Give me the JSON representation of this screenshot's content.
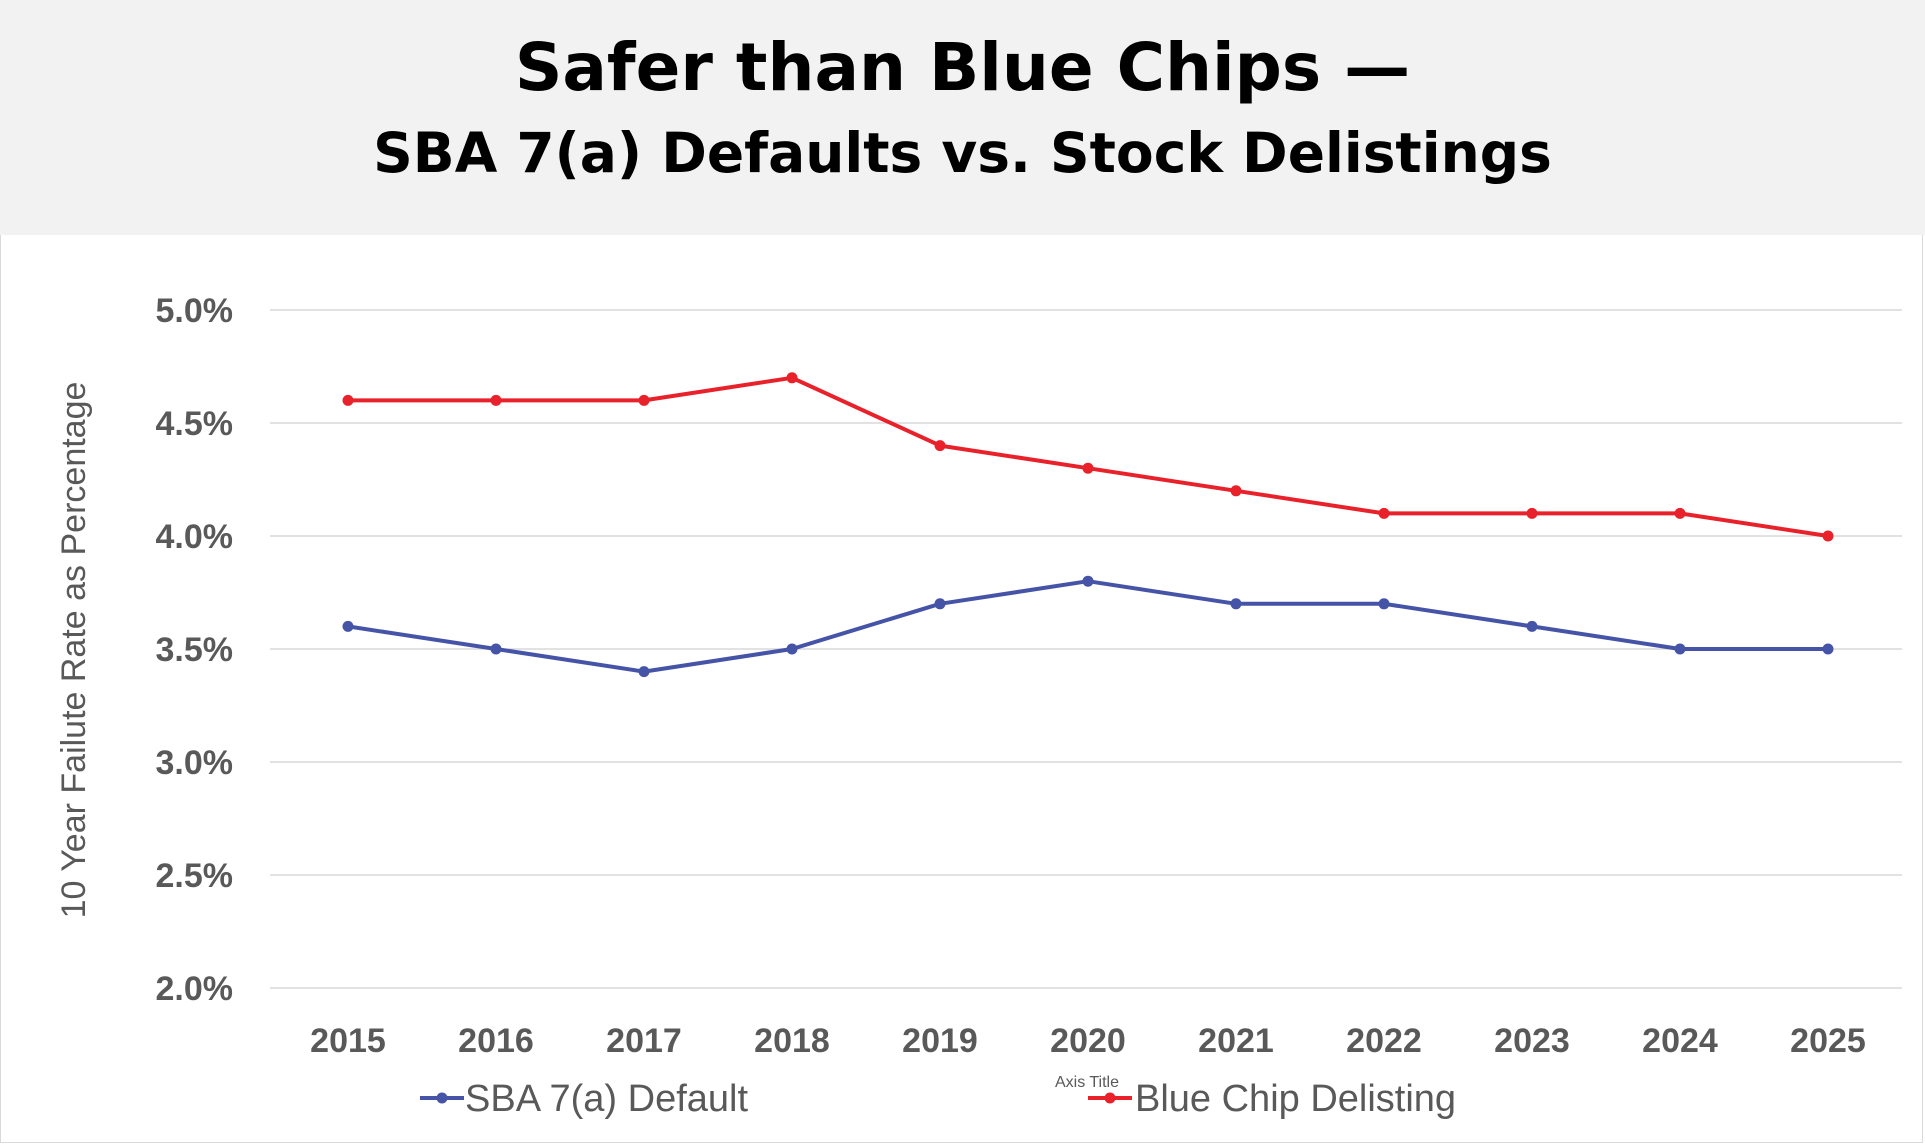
{
  "header": {
    "title": "Safer than Blue Chips —",
    "subtitle": "SBA 7(a) Defaults vs. Stock Delistings"
  },
  "chart_data": {
    "type": "line",
    "title": "Safer than Blue Chips — SBA 7(a) Defaults vs. Stock Delistings",
    "ylabel": "10 Year Failute Rate as Percentage",
    "xlabel": "Axis Title",
    "ylim": [
      2.0,
      5.0
    ],
    "ytick_step": 0.5,
    "ytick_labels": [
      "2.0%",
      "2.5%",
      "3.0%",
      "3.5%",
      "4.0%",
      "4.5%",
      "5.0%"
    ],
    "categories": [
      "2015",
      "2016",
      "2017",
      "2018",
      "2019",
      "2020",
      "2021",
      "2022",
      "2023",
      "2024",
      "2025"
    ],
    "grid": true,
    "legend_position": "bottom",
    "series": [
      {
        "name": "SBA 7(a) Default",
        "color": "#4654a8",
        "values": [
          3.6,
          3.5,
          3.4,
          3.5,
          3.7,
          3.8,
          3.7,
          3.7,
          3.6,
          3.5,
          3.5
        ]
      },
      {
        "name": "Blue Chip Delisting",
        "color": "#e8212a",
        "values": [
          4.6,
          4.6,
          4.6,
          4.7,
          4.4,
          4.3,
          4.2,
          4.1,
          4.1,
          4.1,
          4.0
        ]
      }
    ]
  }
}
